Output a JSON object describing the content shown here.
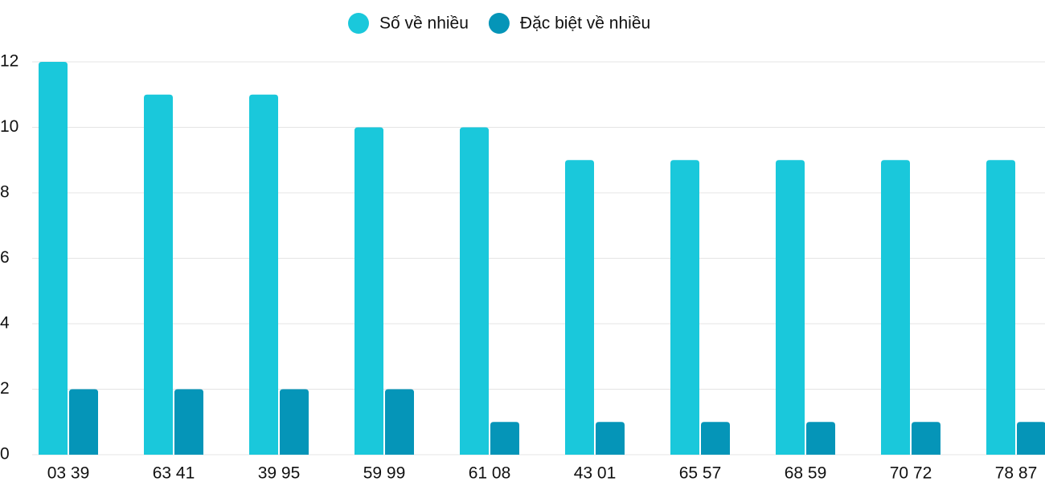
{
  "chart_data": {
    "type": "bar",
    "categories": [
      "03 39",
      "63 41",
      "39 95",
      "59 99",
      "61 08",
      "43 01",
      "65 57",
      "68 59",
      "70 72",
      "78 87"
    ],
    "series": [
      {
        "name": "Số về nhiều",
        "color": "#1ac8db",
        "values": [
          12,
          11,
          11,
          10,
          10,
          9,
          9,
          9,
          9,
          9
        ]
      },
      {
        "name": "Đặc biệt về nhiều",
        "color": "#0595b8",
        "values": [
          2,
          2,
          2,
          2,
          1,
          1,
          1,
          1,
          1,
          1
        ]
      }
    ],
    "ylim": [
      0,
      12
    ],
    "yticks": [
      0,
      2,
      4,
      6,
      8,
      10,
      12
    ],
    "grid": true,
    "legend": "top"
  }
}
